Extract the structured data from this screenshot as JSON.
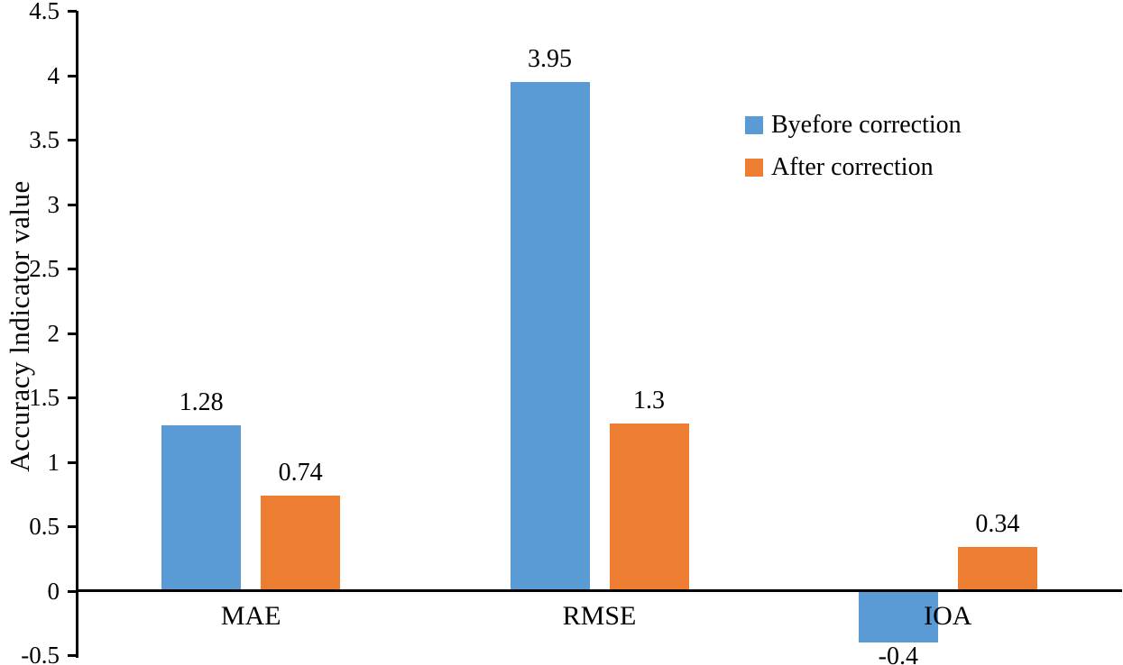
{
  "chart_data": {
    "type": "bar",
    "title": "",
    "xlabel": "",
    "ylabel": "Accuracy lndicator value",
    "categories": [
      "MAE",
      "RMSE",
      "IOA"
    ],
    "series": [
      {
        "name": "Byefore correction",
        "color": "#5B9BD5",
        "values": [
          1.28,
          3.95,
          -0.4
        ],
        "value_labels": [
          "1.28",
          "3.95",
          "-0.4"
        ]
      },
      {
        "name": "After correction",
        "color": "#ED7D31",
        "values": [
          0.74,
          1.3,
          0.34
        ],
        "value_labels": [
          "0.74",
          "1.3",
          "0.34"
        ]
      }
    ],
    "ylim": [
      -0.5,
      4.5
    ],
    "ytick_step": 0.5,
    "yticks": [
      "4.5",
      "4",
      "3.5",
      "3",
      "2.5",
      "2",
      "1.5",
      "1",
      "0.5",
      "0",
      "-0.5"
    ],
    "grid": false,
    "legend_position": "upper right",
    "axis_color": "#000000",
    "text_color": "#000000",
    "background": "#FFFFFF"
  }
}
